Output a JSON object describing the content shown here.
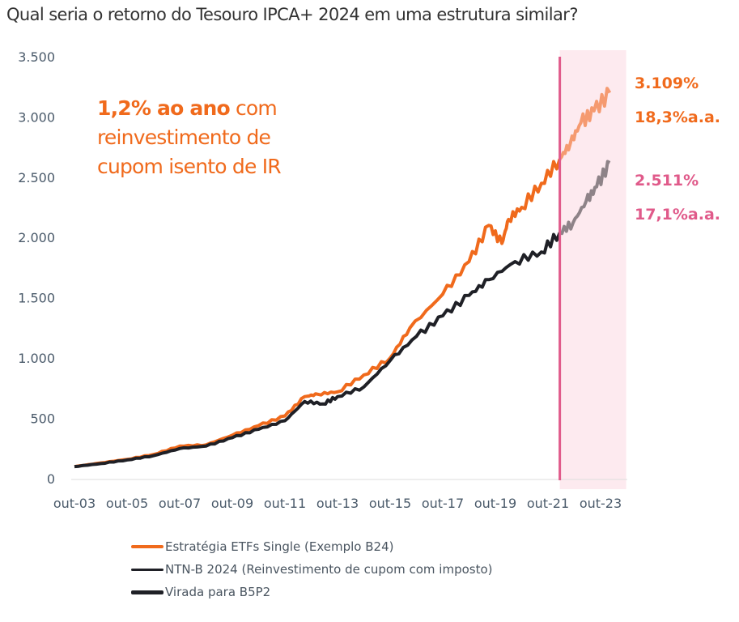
{
  "chart_data": {
    "type": "line",
    "title": "Qual seria o retorno do Tesouro IPCA+ 2024 em uma estrutura similar?",
    "annotation": {
      "bold": "1,2% ao ano",
      "rest1": " com",
      "rest2": "reinvestimento de",
      "rest3": "cupom isento de IR"
    },
    "ylim": [
      0,
      3500
    ],
    "yticks": [
      0,
      500,
      1000,
      1500,
      2000,
      2500,
      3000,
      3500
    ],
    "ytick_labels": [
      "0",
      "500",
      "1.000",
      "1.500",
      "2.000",
      "2.500",
      "3.000",
      "3.500"
    ],
    "xlim": [
      2003.2,
      2024.8
    ],
    "xticks": [
      2003.75,
      2005.75,
      2007.75,
      2009.75,
      2011.75,
      2013.75,
      2015.75,
      2017.75,
      2019.75,
      2021.75,
      2023.75
    ],
    "xtick_labels": [
      "out-03",
      "out-05",
      "out-07",
      "out-09",
      "out-11",
      "out-13",
      "out-15",
      "out-17",
      "out-19",
      "out-21",
      "out-23"
    ],
    "split_x": 2022.2,
    "series": [
      {
        "name": "Estratégia ETFs Single (Exemplo B24)",
        "color": "#f06a1c",
        "ghost_color": "#f59a70",
        "x": [
          2003.75,
          2004.75,
          2005.75,
          2006.75,
          2007.75,
          2008.75,
          2009.75,
          2010.75,
          2011.75,
          2012.5,
          2013,
          2013.75,
          2014.75,
          2015.75,
          2016.5,
          2017.75,
          2018.75,
          2019.5,
          2020,
          2020.25,
          2020.75,
          2021.5,
          2022.2,
          2022.6,
          2023,
          2023.5,
          2024.1
        ],
        "y": [
          100,
          130,
          160,
          200,
          270,
          280,
          360,
          440,
          520,
          680,
          700,
          720,
          860,
          1000,
          1250,
          1530,
          1800,
          2100,
          1950,
          2150,
          2250,
          2450,
          2650,
          2780,
          2950,
          3050,
          3200
        ]
      },
      {
        "name": "NTN-B 2024 (Reinvestimento de cupom com imposto)",
        "color": "#1f2026",
        "ghost_color": "#8e8388",
        "x": [
          2003.75,
          2004.75,
          2005.75,
          2006.75,
          2007.75,
          2008.75,
          2009.75,
          2010.75,
          2011.75,
          2012.5,
          2013.2,
          2013.75,
          2014.75,
          2015.75,
          2016.75,
          2017.75,
          2018.75,
          2019.5,
          2020.5,
          2021.5,
          2022.2,
          2022.7,
          2023.2,
          2023.6,
          2024.1
        ],
        "y": [
          100,
          125,
          155,
          190,
          250,
          270,
          340,
          410,
          480,
          640,
          620,
          680,
          760,
          980,
          1180,
          1350,
          1520,
          1650,
          1800,
          1880,
          2040,
          2120,
          2300,
          2420,
          2620
        ]
      }
    ],
    "legend": [
      "Estratégia ETFs Single (Exemplo B24)",
      "NTN-B 2024 (Reinvestimento de cupom com imposto)",
      "Virada para B5P2"
    ],
    "end_labels": {
      "orange_total": "3.109%",
      "orange_annual": "18,3%a.a.",
      "pink_total": "2.511%",
      "pink_annual": "17,1%a.a."
    },
    "colors": {
      "orange": "#f06a1c",
      "pink": "#e05a8a",
      "black": "#1f2026",
      "shade": "#fdeaef"
    }
  }
}
